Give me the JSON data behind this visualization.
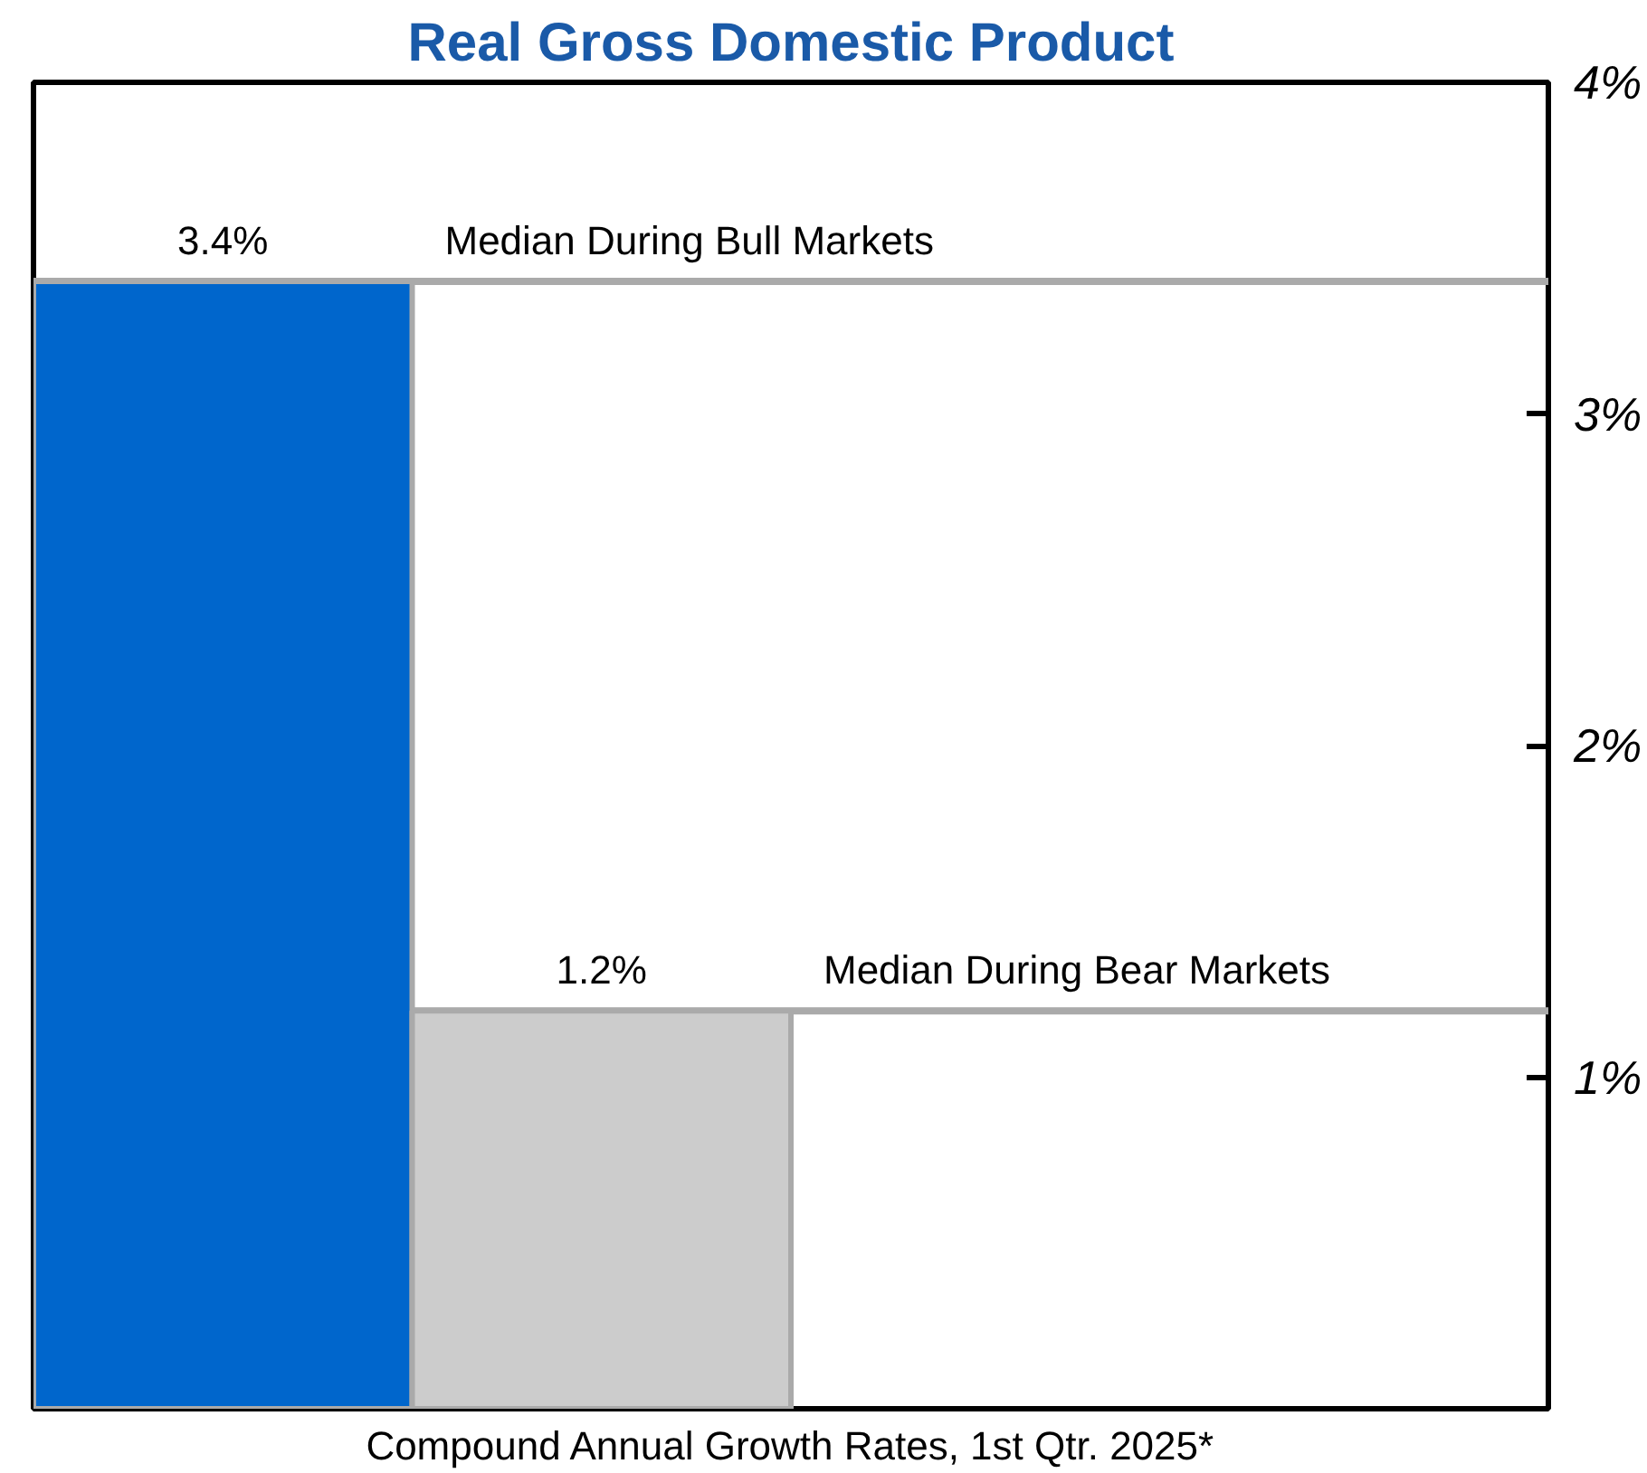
{
  "chart_data": {
    "type": "bar",
    "title": "Real Gross Domestic Product",
    "xlabel": "Compound Annual Growth Rates, 1st Qtr. 2025*",
    "categories": [
      null,
      null,
      null,
      null
    ],
    "values": [
      3.4,
      1.2,
      null,
      null
    ],
    "colors": [
      "#0066cc",
      "#cccccc",
      "#cccccc",
      "#cccccc"
    ],
    "value_labels": [
      "3.4%",
      "1.2%",
      null,
      null
    ],
    "ylim": [
      0,
      4
    ],
    "yticks": [
      {
        "value": 1,
        "label": "1%"
      },
      {
        "value": 2,
        "label": "2%"
      },
      {
        "value": 3,
        "label": "3%"
      },
      {
        "value": 4,
        "label": "4%"
      }
    ],
    "tick_labels": "y",
    "grid": false,
    "ref_lines": [
      {
        "axis": "y",
        "value": 3.4,
        "label": "Median During Bull Markets",
        "color": "#aaaaaa"
      },
      {
        "axis": "y",
        "value": 1.2,
        "label": "Median During Bear Markets",
        "color": "#aaaaaa"
      }
    ]
  }
}
